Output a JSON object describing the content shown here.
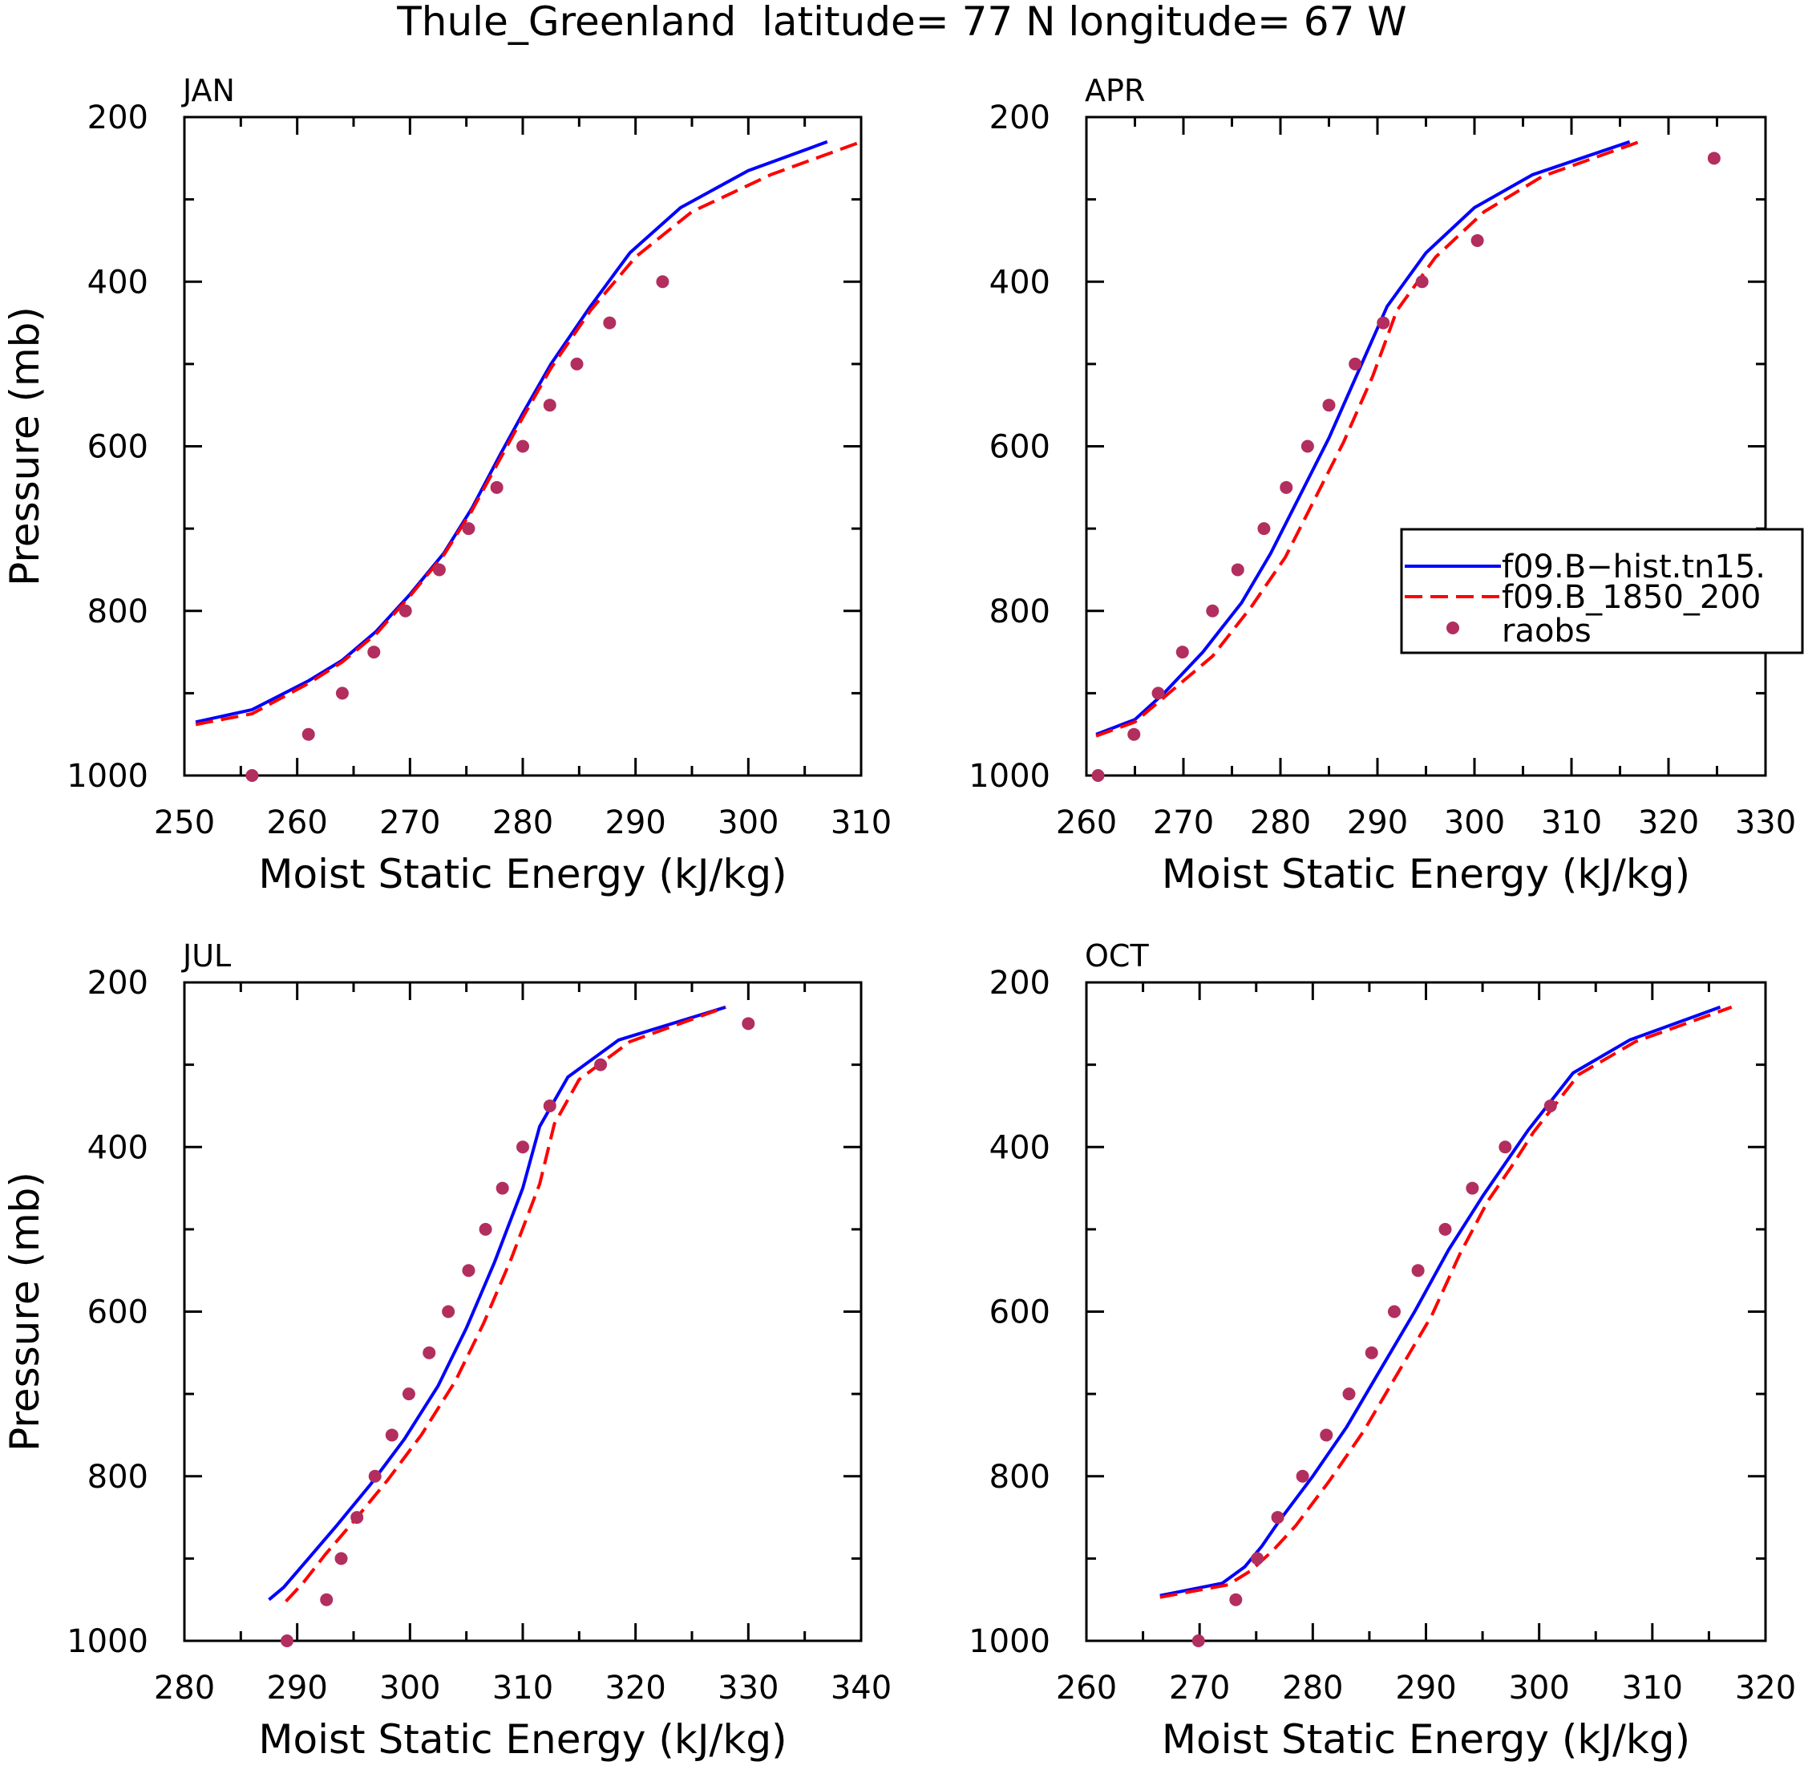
{
  "figure": {
    "title": "Thule_Greenland  latitude= 77 N longitude= 67 W"
  },
  "legend": {
    "entries": [
      {
        "label": "f09.B−hist.tn15.",
        "style": "solid",
        "color": "#0000ff"
      },
      {
        "label": "f09.B_1850_200",
        "style": "dashed",
        "color": "#ff0000"
      },
      {
        "label": "raobs",
        "style": "marker",
        "color": "#b22e5f"
      }
    ]
  },
  "colors": {
    "model_hist": "#0000ff",
    "model_1850": "#ff0000",
    "raobs": "#b22e5f"
  },
  "chart_data": [
    {
      "type": "line",
      "title": "JAN",
      "xlabel": "Moist Static Energy (kJ/kg)",
      "ylabel": "Pressure (mb)",
      "xlim": [
        250,
        310
      ],
      "ylim": [
        1000,
        200
      ],
      "xticks": [
        250,
        260,
        270,
        280,
        290,
        300,
        310
      ],
      "yticks": [
        200,
        400,
        600,
        800,
        1000
      ],
      "series": [
        {
          "name": "f09.B−hist.tn15.",
          "style": "solid",
          "x": [
            251,
            256,
            261,
            264,
            267,
            270,
            273,
            275.5,
            278,
            280,
            282.5,
            286,
            289.5,
            294,
            300,
            307
          ],
          "y": [
            935,
            920,
            885,
            860,
            825,
            780,
            730,
            675,
            610,
            560,
            500,
            430,
            365,
            310,
            265,
            230
          ]
        },
        {
          "name": "f09.B_1850_200",
          "style": "dashed",
          "x": [
            251,
            256,
            261,
            264,
            267,
            270,
            273,
            275.5,
            278,
            280,
            282.5,
            286,
            290,
            295,
            302,
            310
          ],
          "y": [
            938,
            925,
            888,
            862,
            828,
            782,
            732,
            678,
            615,
            565,
            505,
            435,
            370,
            315,
            270,
            230
          ]
        },
        {
          "name": "raobs",
          "style": "marker",
          "x": [
            256,
            261,
            264,
            266.8,
            269.6,
            272.6,
            275.2,
            277.7,
            280,
            282.4,
            284.8,
            287.7,
            292.4
          ],
          "y": [
            1000,
            950,
            900,
            850,
            800,
            750,
            700,
            650,
            600,
            550,
            500,
            450,
            400
          ]
        }
      ]
    },
    {
      "type": "line",
      "title": "APR",
      "xlabel": "Moist Static Energy (kJ/kg)",
      "ylabel": "",
      "xlim": [
        260,
        330
      ],
      "ylim": [
        1000,
        200
      ],
      "xticks": [
        260,
        270,
        280,
        290,
        300,
        310,
        320,
        330
      ],
      "yticks": [
        200,
        400,
        600,
        800,
        1000
      ],
      "series": [
        {
          "name": "f09.B−hist.tn15.",
          "style": "solid",
          "x": [
            261,
            265,
            268,
            272,
            276,
            279,
            282,
            285,
            288,
            291,
            295,
            300,
            306,
            316
          ],
          "y": [
            950,
            932,
            900,
            850,
            790,
            730,
            660,
            590,
            510,
            430,
            365,
            310,
            270,
            230
          ]
        },
        {
          "name": "f09.B_1850_200",
          "style": "dashed",
          "x": [
            261,
            265,
            268,
            273,
            277,
            280.5,
            283.5,
            286.5,
            289.5,
            292,
            296,
            301,
            307,
            317
          ],
          "y": [
            952,
            935,
            905,
            855,
            795,
            735,
            665,
            595,
            515,
            435,
            370,
            315,
            272,
            230
          ]
        },
        {
          "name": "raobs",
          "style": "marker",
          "x": [
            261.2,
            264.9,
            267.4,
            269.9,
            273,
            275.6,
            278.3,
            280.6,
            282.8,
            285,
            287.7,
            290.6,
            294.6,
            300.3,
            324.7
          ],
          "y": [
            1000,
            950,
            900,
            850,
            800,
            750,
            700,
            650,
            600,
            550,
            500,
            450,
            400,
            350,
            250
          ]
        }
      ]
    },
    {
      "type": "line",
      "title": "JUL",
      "xlabel": "Moist Static Energy (kJ/kg)",
      "ylabel": "Pressure (mb)",
      "xlim": [
        280,
        340
      ],
      "ylim": [
        1000,
        200
      ],
      "xticks": [
        280,
        290,
        300,
        310,
        320,
        330,
        340
      ],
      "yticks": [
        200,
        400,
        600,
        800,
        1000
      ],
      "series": [
        {
          "name": "f09.B−hist.tn15.",
          "style": "solid",
          "x": [
            287.5,
            288.8,
            291,
            293.5,
            296.5,
            299.5,
            302.5,
            305,
            307.5,
            310,
            311.5,
            314,
            318.5,
            328
          ],
          "y": [
            950,
            935,
            900,
            860,
            810,
            755,
            690,
            620,
            540,
            450,
            375,
            315,
            270,
            230
          ]
        },
        {
          "name": "f09.B_1850_200",
          "style": "dashed",
          "x": [
            289,
            290.5,
            292.5,
            295,
            298,
            301,
            304,
            306.5,
            309,
            311.5,
            312.8,
            315,
            319.5,
            328
          ],
          "y": [
            952,
            930,
            895,
            855,
            805,
            750,
            685,
            615,
            535,
            445,
            372,
            318,
            272,
            230
          ]
        },
        {
          "name": "raobs",
          "style": "marker",
          "x": [
            289.1,
            292.6,
            293.9,
            295.3,
            296.9,
            298.4,
            299.9,
            301.7,
            303.4,
            305.2,
            306.7,
            308.2,
            310,
            312.4,
            316.9,
            330
          ],
          "y": [
            1000,
            950,
            900,
            850,
            800,
            750,
            700,
            650,
            600,
            550,
            500,
            450,
            400,
            350,
            300,
            250
          ]
        }
      ]
    },
    {
      "type": "line",
      "title": "OCT",
      "xlabel": "Moist Static Energy (kJ/kg)",
      "ylabel": "",
      "xlim": [
        260,
        320
      ],
      "ylim": [
        1000,
        200
      ],
      "xticks": [
        260,
        270,
        280,
        290,
        300,
        310,
        320
      ],
      "yticks": [
        200,
        400,
        600,
        800,
        1000
      ],
      "series": [
        {
          "name": "f09.B−hist.tn15.",
          "style": "solid",
          "x": [
            266.5,
            272,
            274,
            275.5,
            277,
            280,
            283,
            286,
            289,
            292,
            295,
            297,
            299,
            303,
            308,
            316
          ],
          "y": [
            945,
            930,
            910,
            885,
            855,
            800,
            740,
            670,
            600,
            525,
            460,
            420,
            380,
            310,
            270,
            230
          ]
        },
        {
          "name": "f09.B_1850_200",
          "style": "dashed",
          "x": [
            266.5,
            272.5,
            274.5,
            276.5,
            278.5,
            281.5,
            284.5,
            287.5,
            290.5,
            293,
            295.5,
            297.5,
            299.5,
            303.5,
            308.5,
            317
          ],
          "y": [
            947,
            932,
            915,
            890,
            860,
            805,
            745,
            675,
            605,
            530,
            465,
            425,
            382,
            312,
            272,
            230
          ]
        },
        {
          "name": "raobs",
          "style": "marker",
          "x": [
            269.9,
            273.2,
            275.1,
            276.9,
            279.1,
            281.2,
            283.2,
            285.2,
            287.2,
            289.3,
            291.7,
            294.1,
            297,
            301
          ],
          "y": [
            1000,
            950,
            900,
            850,
            800,
            750,
            700,
            650,
            600,
            550,
            500,
            450,
            400,
            350
          ]
        }
      ]
    }
  ]
}
